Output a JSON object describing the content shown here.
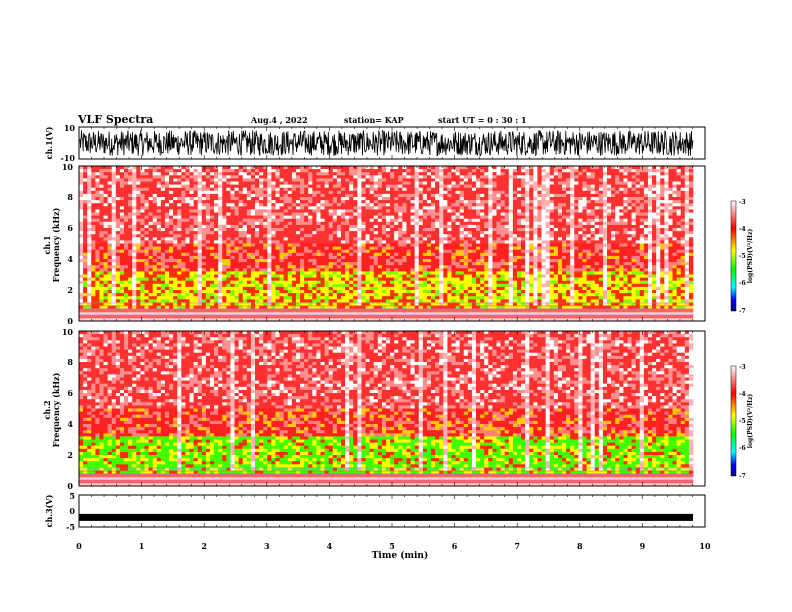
{
  "header": {
    "title": "VLF Spectra",
    "date": "Aug.4 , 2022",
    "station": "station= KAP",
    "start": "start UT = 0 : 30 : 1"
  },
  "chart_data": [
    {
      "type": "line",
      "panel": "ch1-waveform",
      "ylabel": "ch.1(V)",
      "ylim": [
        -10,
        10
      ],
      "yticks": [
        "10",
        "-10"
      ],
      "xlim": [
        0,
        10
      ],
      "note_values": "dense noisy waveform mostly between -8 and 8 V"
    },
    {
      "type": "heatmap",
      "panel": "ch1-spectrogram",
      "ylabel": "ch.1\nFrequency (kHz)",
      "ylim": [
        0,
        10
      ],
      "yticks": [
        "0",
        "2",
        "4",
        "6",
        "8",
        "10"
      ],
      "xlim": [
        0,
        9.83
      ],
      "colorbar": {
        "label": "log(PSD)(V²/Hz)",
        "range": [
          -7,
          -3
        ],
        "ticks": [
          "-3",
          "-4",
          "-5",
          "-6",
          "-7"
        ]
      }
    },
    {
      "type": "heatmap",
      "panel": "ch2-spectrogram",
      "ylabel": "ch.2\nFrequency (kHz)",
      "ylim": [
        0,
        10
      ],
      "yticks": [
        "0",
        "2",
        "4",
        "6",
        "8",
        "10"
      ],
      "xlim": [
        0,
        9.83
      ],
      "colorbar": {
        "label": "log(PSD)(V²/Hz)",
        "range": [
          -7,
          -3
        ],
        "ticks": [
          "-3",
          "-4",
          "-5",
          "-6",
          "-7"
        ]
      }
    },
    {
      "type": "line",
      "panel": "ch3-waveform",
      "ylabel": "ch.3(V)",
      "ylim": [
        -5,
        5
      ],
      "yticks": [
        "5",
        "0",
        "-5"
      ],
      "xlim": [
        0,
        10
      ],
      "constant_value": -2
    }
  ],
  "xaxis": {
    "label": "Time (min)",
    "range": [
      0,
      10
    ],
    "ticks": [
      "0",
      "1",
      "2",
      "3",
      "4",
      "5",
      "6",
      "7",
      "8",
      "9",
      "10"
    ]
  },
  "colors": {
    "spectrum": [
      "#000080",
      "#0000ff",
      "#00ffff",
      "#00ff00",
      "#ffff00",
      "#ff0000",
      "#ffffff"
    ]
  }
}
